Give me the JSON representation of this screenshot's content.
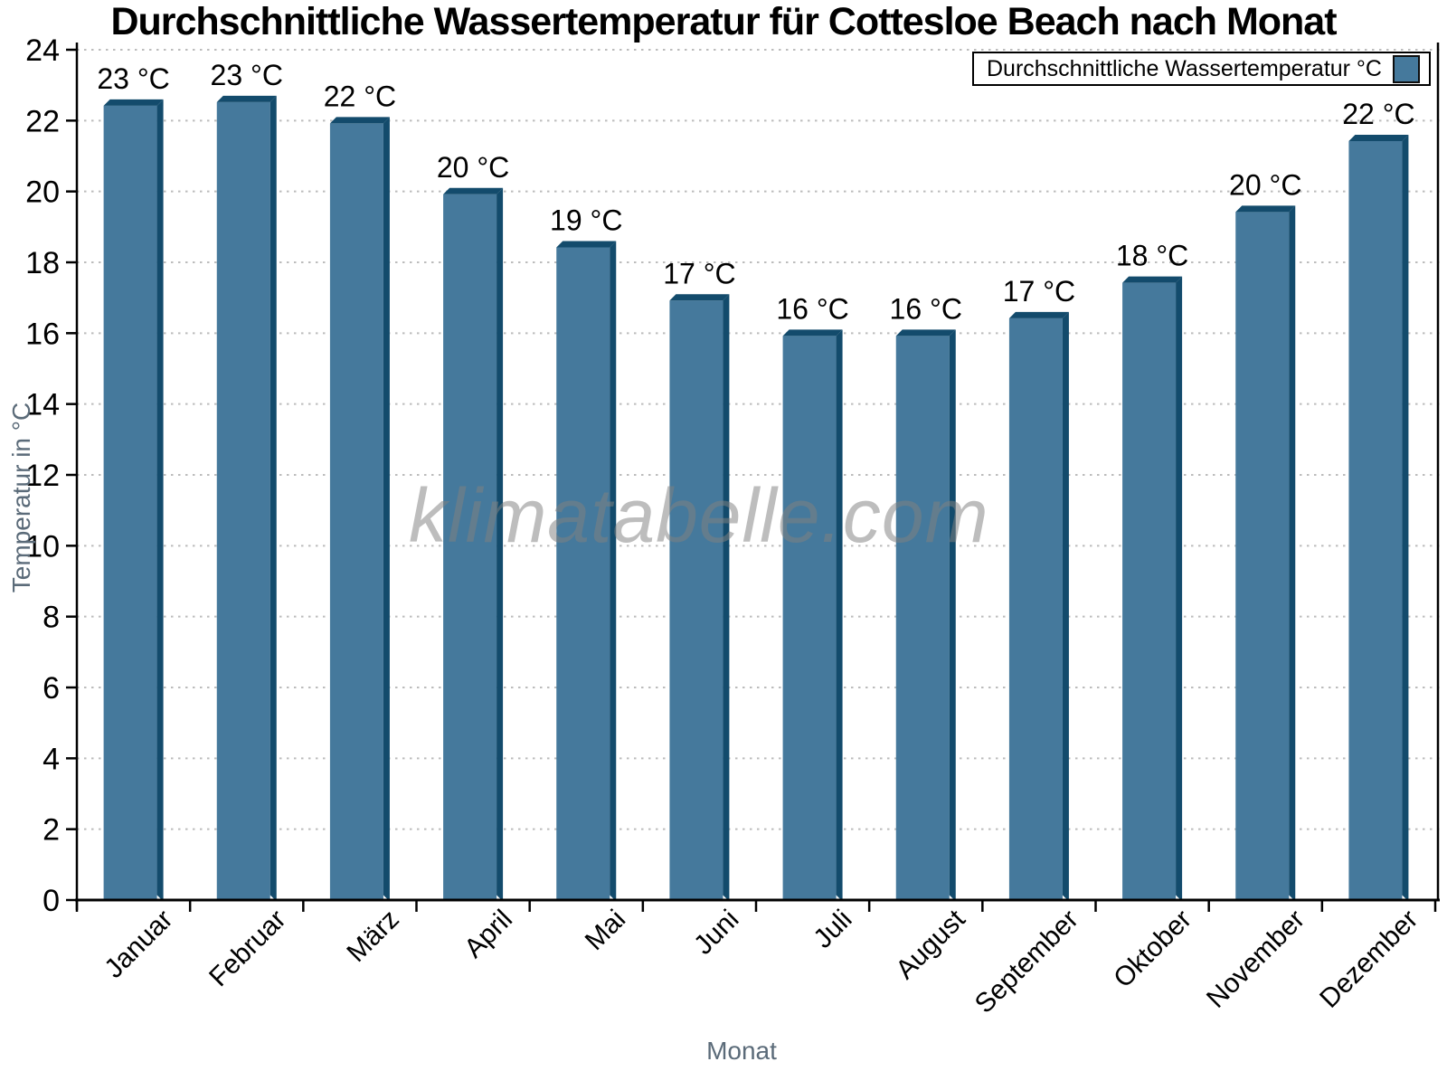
{
  "title": "Durchschnittliche Wassertemperatur für Cottesloe Beach nach Monat",
  "watermark": "klimatabelle.com",
  "legend": {
    "label": "Durchschnittliche Wassertemperatur °C"
  },
  "chart_data": {
    "type": "bar",
    "title": "Durchschnittliche Wassertemperatur für Cottesloe Beach nach Monat",
    "xlabel": "Monat",
    "ylabel": "Temperatur in °C",
    "categories": [
      "Januar",
      "Februar",
      "März",
      "April",
      "Mai",
      "Juni",
      "Juli",
      "August",
      "September",
      "Oktober",
      "November",
      "Dezember"
    ],
    "values": [
      22.6,
      22.7,
      22.1,
      20.1,
      18.6,
      17.1,
      16.1,
      16.1,
      16.6,
      17.6,
      19.6,
      21.6
    ],
    "bar_labels": [
      "23 °C",
      "23 °C",
      "22 °C",
      "20 °C",
      "19 °C",
      "17 °C",
      "16 °C",
      "16 °C",
      "17 °C",
      "18 °C",
      "20 °C",
      "22 °C"
    ],
    "ylim": [
      0,
      24
    ],
    "ytick_step": 2,
    "grid": "horizontal dotted",
    "legend": "Durchschnittliche Wassertemperatur °C",
    "legend_position": "top-right",
    "colors": {
      "bar_fill": "#45799c",
      "bar_edge_dark": "#134b6c",
      "gridline": "#bcbcbc",
      "axis": "#000000",
      "axis_title_text": "#5b6b79",
      "tick_label_text": "#000000",
      "value_label_text": "#000000",
      "watermark_text": "#808080"
    }
  }
}
